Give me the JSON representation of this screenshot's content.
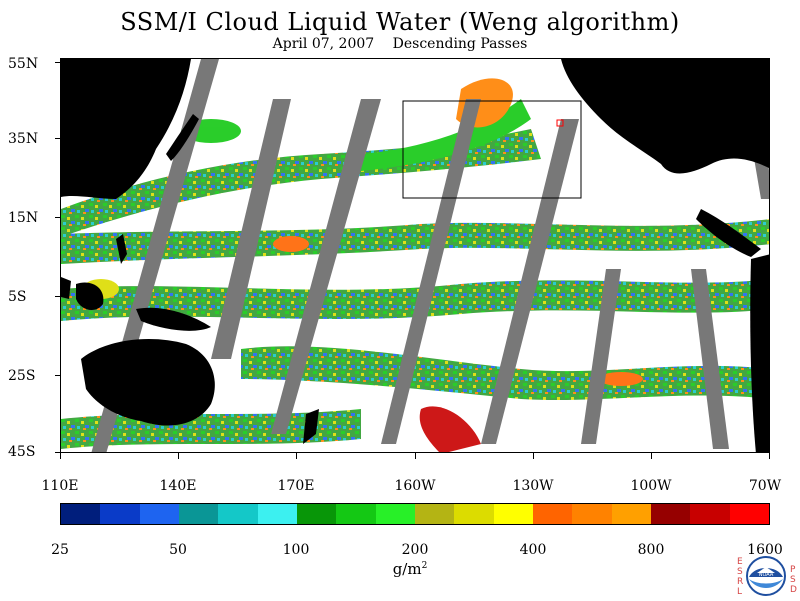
{
  "title": "SSM/I Cloud Liquid Water (Weng algorithm)",
  "subtitle": {
    "date": "April 07, 2007",
    "pass": "Descending Passes"
  },
  "lat_labels": [
    "55N",
    "35N",
    "15N",
    "5S",
    "25S",
    "45S"
  ],
  "lon_labels": [
    "110E",
    "140E",
    "170E",
    "160W",
    "130W",
    "100W",
    "70W"
  ],
  "colorbar": {
    "colors": [
      "#001e7c",
      "#0a3bc8",
      "#1e64f0",
      "#0a9696",
      "#14c8c8",
      "#3cf0f0",
      "#089608",
      "#14c814",
      "#28f028",
      "#b4b414",
      "#dcdc00",
      "#ffff00",
      "#ff6400",
      "#ff8200",
      "#ffa000",
      "#960000",
      "#c80000",
      "#ff0000"
    ],
    "labels": [
      "25",
      "50",
      "100",
      "200",
      "400",
      "800",
      "1600"
    ],
    "unit": "g/m",
    "unit_exp": "2"
  },
  "logo": {
    "left_letters": "ESRL",
    "right_letters": "PSD",
    "center_text": "NOAA"
  },
  "colors": {
    "land": "#000000",
    "swath_gap": "#787878",
    "ocean_clear": "#ffffff"
  }
}
